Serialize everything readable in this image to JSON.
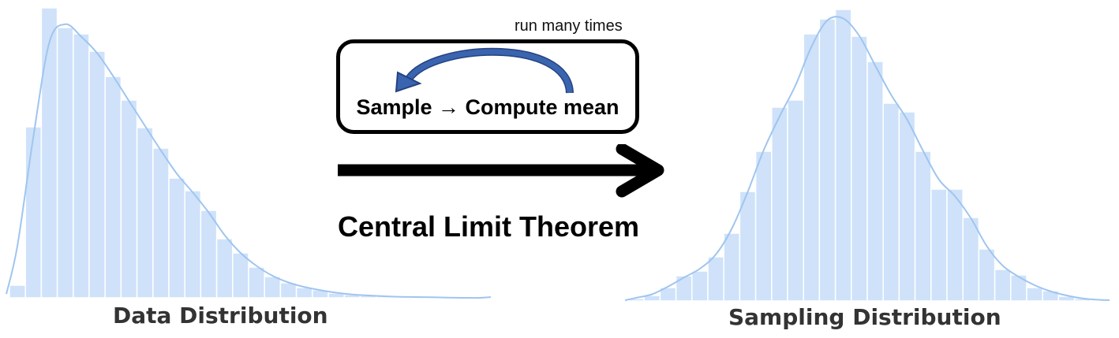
{
  "loop": {
    "note": "run many times",
    "label": "Sample → Compute mean"
  },
  "theorem_title": "Central Limit Theorem",
  "colors": {
    "bar_fill": "#cfe2fa",
    "curve": "#9fc5ef",
    "arrow_blue": "#3a64b0"
  },
  "icons": {
    "curved_arrow": "curved-arrow-icon",
    "right_arrow": "right-arrow-icon"
  },
  "chart_data": [
    {
      "type": "bar",
      "title": "Data Distribution",
      "values": [
        16,
        217,
        368,
        343,
        335,
        313,
        281,
        251,
        216,
        190,
        152,
        136,
        111,
        75,
        57,
        39,
        27,
        19,
        13,
        10,
        6,
        4,
        3,
        2,
        1,
        1,
        1,
        0,
        0,
        0
      ],
      "ylim": [
        0,
        368
      ],
      "grid": false,
      "kde_curve": true
    },
    {
      "type": "bar",
      "title": "Sampling Distribution",
      "values": [
        3,
        7,
        17,
        32,
        38,
        56,
        86,
        139,
        190,
        246,
        255,
        339,
        358,
        370,
        336,
        304,
        251,
        240,
        190,
        142,
        142,
        106,
        66,
        40,
        33,
        17,
        13,
        6,
        3,
        1
      ],
      "ylim": [
        0,
        370
      ],
      "grid": false,
      "kde_curve": true
    }
  ]
}
